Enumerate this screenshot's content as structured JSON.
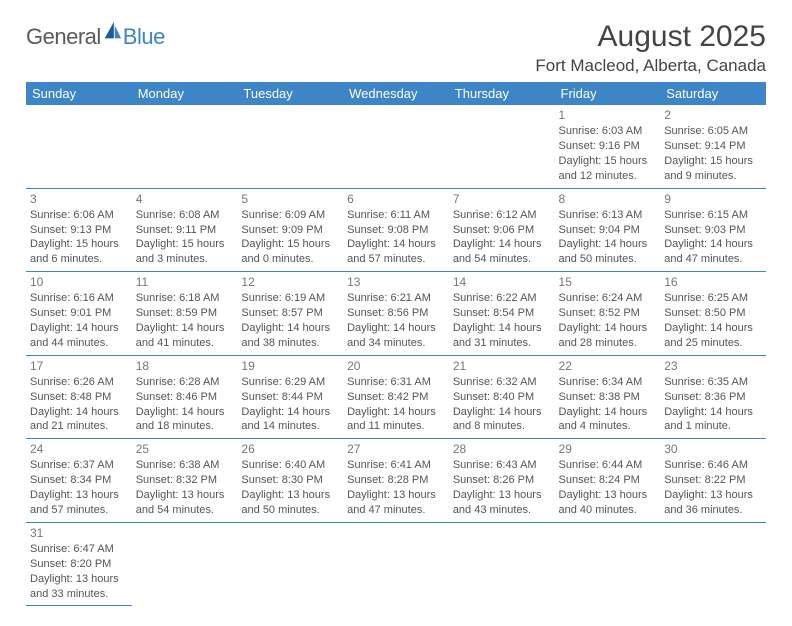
{
  "logo": {
    "general": "General",
    "blue": "Blue"
  },
  "title": "August 2025",
  "location": "Fort Macleod, Alberta, Canada",
  "colors": {
    "header_bg": "#3d85c6",
    "header_text": "#ffffff",
    "border": "#3d85c6",
    "text": "#555555",
    "daynum": "#777777",
    "logo_gray": "#5a5a5a",
    "logo_blue": "#3d85c6"
  },
  "days_header": [
    "Sunday",
    "Monday",
    "Tuesday",
    "Wednesday",
    "Thursday",
    "Friday",
    "Saturday"
  ],
  "weeks": [
    [
      {
        "empty": true
      },
      {
        "empty": true
      },
      {
        "empty": true
      },
      {
        "empty": true
      },
      {
        "empty": true
      },
      {
        "day": "1",
        "sunrise": "Sunrise: 6:03 AM",
        "sunset": "Sunset: 9:16 PM",
        "daylight": "Daylight: 15 hours and 12 minutes."
      },
      {
        "day": "2",
        "sunrise": "Sunrise: 6:05 AM",
        "sunset": "Sunset: 9:14 PM",
        "daylight": "Daylight: 15 hours and 9 minutes."
      }
    ],
    [
      {
        "day": "3",
        "sunrise": "Sunrise: 6:06 AM",
        "sunset": "Sunset: 9:13 PM",
        "daylight": "Daylight: 15 hours and 6 minutes."
      },
      {
        "day": "4",
        "sunrise": "Sunrise: 6:08 AM",
        "sunset": "Sunset: 9:11 PM",
        "daylight": "Daylight: 15 hours and 3 minutes."
      },
      {
        "day": "5",
        "sunrise": "Sunrise: 6:09 AM",
        "sunset": "Sunset: 9:09 PM",
        "daylight": "Daylight: 15 hours and 0 minutes."
      },
      {
        "day": "6",
        "sunrise": "Sunrise: 6:11 AM",
        "sunset": "Sunset: 9:08 PM",
        "daylight": "Daylight: 14 hours and 57 minutes."
      },
      {
        "day": "7",
        "sunrise": "Sunrise: 6:12 AM",
        "sunset": "Sunset: 9:06 PM",
        "daylight": "Daylight: 14 hours and 54 minutes."
      },
      {
        "day": "8",
        "sunrise": "Sunrise: 6:13 AM",
        "sunset": "Sunset: 9:04 PM",
        "daylight": "Daylight: 14 hours and 50 minutes."
      },
      {
        "day": "9",
        "sunrise": "Sunrise: 6:15 AM",
        "sunset": "Sunset: 9:03 PM",
        "daylight": "Daylight: 14 hours and 47 minutes."
      }
    ],
    [
      {
        "day": "10",
        "sunrise": "Sunrise: 6:16 AM",
        "sunset": "Sunset: 9:01 PM",
        "daylight": "Daylight: 14 hours and 44 minutes."
      },
      {
        "day": "11",
        "sunrise": "Sunrise: 6:18 AM",
        "sunset": "Sunset: 8:59 PM",
        "daylight": "Daylight: 14 hours and 41 minutes."
      },
      {
        "day": "12",
        "sunrise": "Sunrise: 6:19 AM",
        "sunset": "Sunset: 8:57 PM",
        "daylight": "Daylight: 14 hours and 38 minutes."
      },
      {
        "day": "13",
        "sunrise": "Sunrise: 6:21 AM",
        "sunset": "Sunset: 8:56 PM",
        "daylight": "Daylight: 14 hours and 34 minutes."
      },
      {
        "day": "14",
        "sunrise": "Sunrise: 6:22 AM",
        "sunset": "Sunset: 8:54 PM",
        "daylight": "Daylight: 14 hours and 31 minutes."
      },
      {
        "day": "15",
        "sunrise": "Sunrise: 6:24 AM",
        "sunset": "Sunset: 8:52 PM",
        "daylight": "Daylight: 14 hours and 28 minutes."
      },
      {
        "day": "16",
        "sunrise": "Sunrise: 6:25 AM",
        "sunset": "Sunset: 8:50 PM",
        "daylight": "Daylight: 14 hours and 25 minutes."
      }
    ],
    [
      {
        "day": "17",
        "sunrise": "Sunrise: 6:26 AM",
        "sunset": "Sunset: 8:48 PM",
        "daylight": "Daylight: 14 hours and 21 minutes."
      },
      {
        "day": "18",
        "sunrise": "Sunrise: 6:28 AM",
        "sunset": "Sunset: 8:46 PM",
        "daylight": "Daylight: 14 hours and 18 minutes."
      },
      {
        "day": "19",
        "sunrise": "Sunrise: 6:29 AM",
        "sunset": "Sunset: 8:44 PM",
        "daylight": "Daylight: 14 hours and 14 minutes."
      },
      {
        "day": "20",
        "sunrise": "Sunrise: 6:31 AM",
        "sunset": "Sunset: 8:42 PM",
        "daylight": "Daylight: 14 hours and 11 minutes."
      },
      {
        "day": "21",
        "sunrise": "Sunrise: 6:32 AM",
        "sunset": "Sunset: 8:40 PM",
        "daylight": "Daylight: 14 hours and 8 minutes."
      },
      {
        "day": "22",
        "sunrise": "Sunrise: 6:34 AM",
        "sunset": "Sunset: 8:38 PM",
        "daylight": "Daylight: 14 hours and 4 minutes."
      },
      {
        "day": "23",
        "sunrise": "Sunrise: 6:35 AM",
        "sunset": "Sunset: 8:36 PM",
        "daylight": "Daylight: 14 hours and 1 minute."
      }
    ],
    [
      {
        "day": "24",
        "sunrise": "Sunrise: 6:37 AM",
        "sunset": "Sunset: 8:34 PM",
        "daylight": "Daylight: 13 hours and 57 minutes."
      },
      {
        "day": "25",
        "sunrise": "Sunrise: 6:38 AM",
        "sunset": "Sunset: 8:32 PM",
        "daylight": "Daylight: 13 hours and 54 minutes."
      },
      {
        "day": "26",
        "sunrise": "Sunrise: 6:40 AM",
        "sunset": "Sunset: 8:30 PM",
        "daylight": "Daylight: 13 hours and 50 minutes."
      },
      {
        "day": "27",
        "sunrise": "Sunrise: 6:41 AM",
        "sunset": "Sunset: 8:28 PM",
        "daylight": "Daylight: 13 hours and 47 minutes."
      },
      {
        "day": "28",
        "sunrise": "Sunrise: 6:43 AM",
        "sunset": "Sunset: 8:26 PM",
        "daylight": "Daylight: 13 hours and 43 minutes."
      },
      {
        "day": "29",
        "sunrise": "Sunrise: 6:44 AM",
        "sunset": "Sunset: 8:24 PM",
        "daylight": "Daylight: 13 hours and 40 minutes."
      },
      {
        "day": "30",
        "sunrise": "Sunrise: 6:46 AM",
        "sunset": "Sunset: 8:22 PM",
        "daylight": "Daylight: 13 hours and 36 minutes."
      }
    ],
    [
      {
        "day": "31",
        "sunrise": "Sunrise: 6:47 AM",
        "sunset": "Sunset: 8:20 PM",
        "daylight": "Daylight: 13 hours and 33 minutes."
      },
      {
        "empty": true
      },
      {
        "empty": true
      },
      {
        "empty": true
      },
      {
        "empty": true
      },
      {
        "empty": true
      },
      {
        "empty": true
      }
    ]
  ]
}
